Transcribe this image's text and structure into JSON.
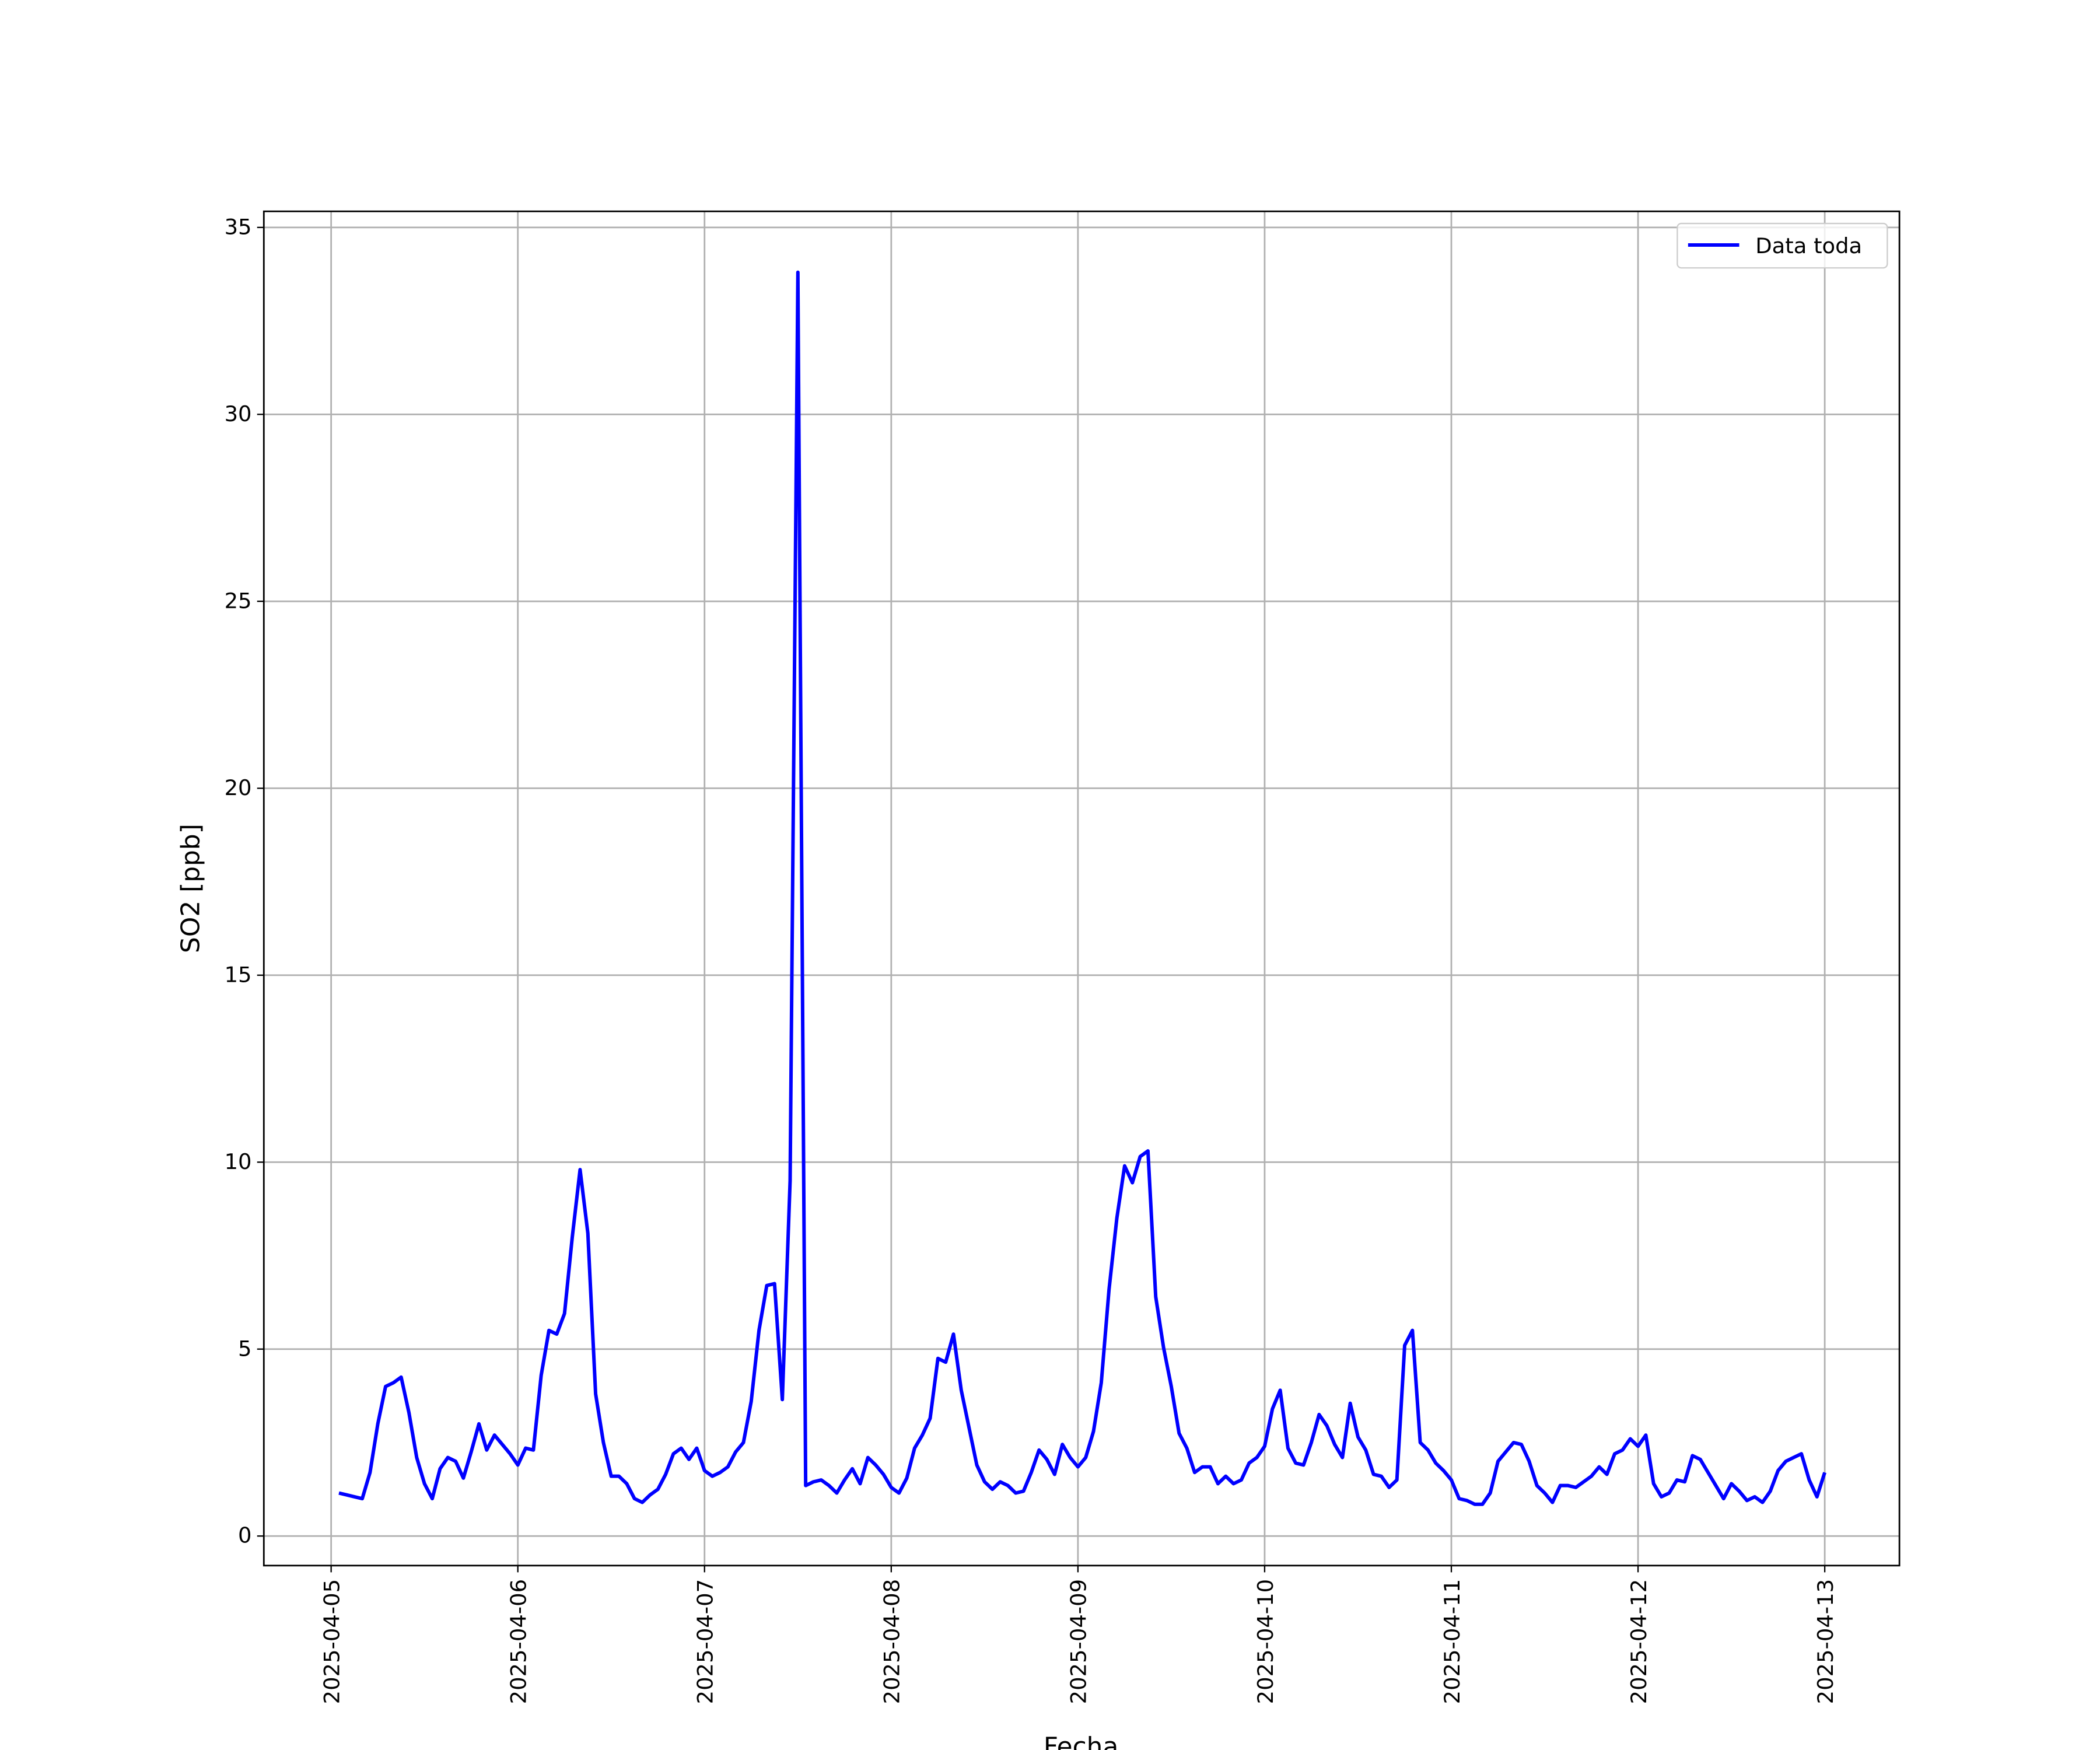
{
  "chart_data": {
    "type": "line",
    "xlabel": "Fecha",
    "ylabel": "SO2 [ppb]",
    "x": [
      1,
      2,
      3,
      4,
      5,
      6,
      7,
      8,
      9,
      10,
      11,
      12,
      13,
      14,
      15,
      16,
      17,
      18,
      19,
      20,
      21,
      22,
      23,
      24,
      25,
      26,
      27,
      28,
      29,
      30,
      31,
      32,
      33,
      34,
      35,
      36,
      37,
      38,
      39,
      40,
      41,
      42,
      43,
      44,
      45,
      46,
      47,
      48,
      49,
      50,
      51,
      52,
      53,
      54,
      55,
      56,
      57,
      58,
      59,
      60,
      61,
      62,
      63,
      64,
      65,
      66,
      67,
      68,
      69,
      70,
      71,
      72,
      73,
      74,
      75,
      76,
      77,
      78,
      79,
      80,
      81,
      82,
      83,
      84,
      85,
      86,
      87,
      88,
      89,
      90,
      91,
      92,
      93,
      94,
      95,
      96,
      97,
      98,
      99,
      100,
      101,
      102,
      103,
      104,
      105,
      106,
      107,
      108,
      109,
      110,
      111,
      112,
      113,
      114,
      115,
      116,
      117,
      118,
      119,
      120,
      121,
      122,
      123,
      124,
      125,
      126,
      127,
      128,
      129,
      130,
      131,
      132,
      133,
      134,
      135,
      136,
      137,
      138,
      139,
      140,
      141,
      142,
      143,
      144,
      145,
      146,
      147,
      148,
      149,
      150,
      151,
      152,
      153,
      154,
      155,
      156,
      157,
      158,
      159,
      160,
      161,
      162,
      163,
      164,
      165,
      166,
      167,
      168,
      169,
      170,
      171,
      172,
      173,
      174,
      175,
      176,
      177,
      178,
      179,
      180,
      181,
      182,
      183,
      184,
      185,
      186,
      187,
      188,
      189,
      190,
      191,
      192
    ],
    "series": [
      {
        "name": "Data toda",
        "color": "#0000ff",
        "values": [
          1.15,
          1.1,
          1.05,
          1.0,
          1.7,
          3.0,
          4.0,
          4.1,
          4.25,
          3.3,
          2.1,
          1.4,
          1.0,
          1.8,
          2.1,
          2.0,
          1.55,
          2.25,
          3.0,
          2.3,
          2.7,
          2.45,
          2.2,
          1.9,
          2.35,
          2.3,
          4.3,
          5.5,
          5.4,
          5.95,
          8.0,
          9.8,
          8.1,
          3.8,
          2.5,
          1.6,
          1.6,
          1.4,
          1.0,
          0.9,
          1.1,
          1.25,
          1.65,
          2.2,
          2.35,
          2.05,
          2.35,
          1.75,
          1.6,
          1.7,
          1.85,
          2.25,
          2.5,
          3.6,
          5.5,
          6.7,
          6.75,
          3.65,
          9.5,
          33.8,
          1.35,
          1.45,
          1.5,
          1.35,
          1.15,
          1.5,
          1.8,
          1.4,
          2.1,
          1.9,
          1.65,
          1.3,
          1.15,
          1.55,
          2.35,
          2.7,
          3.15,
          4.75,
          4.65,
          5.4,
          3.9,
          2.9,
          1.9,
          1.45,
          1.25,
          1.45,
          1.35,
          1.15,
          1.2,
          1.7,
          2.3,
          2.05,
          1.65,
          2.45,
          2.1,
          1.85,
          2.1,
          2.8,
          4.1,
          6.6,
          8.5,
          9.9,
          9.45,
          10.15,
          10.3,
          6.4,
          5.05,
          4.0,
          2.75,
          2.35,
          1.7,
          1.85,
          1.85,
          1.4,
          1.6,
          1.4,
          1.5,
          1.95,
          2.1,
          2.4,
          3.4,
          3.9,
          2.35,
          1.95,
          1.9,
          2.5,
          3.25,
          2.95,
          2.45,
          2.1,
          3.55,
          2.65,
          2.3,
          1.65,
          1.6,
          1.3,
          1.5,
          5.1,
          5.5,
          2.5,
          2.3,
          1.95,
          1.75,
          1.5,
          1.0,
          0.95,
          0.85,
          0.85,
          1.15,
          2.0,
          2.25,
          2.5,
          2.45,
          2.0,
          1.35,
          1.15,
          0.9,
          1.35,
          1.35,
          1.3,
          1.45,
          1.6,
          1.85,
          1.65,
          2.2,
          2.3,
          2.6,
          2.4,
          2.7,
          1.4,
          1.05,
          1.15,
          1.5,
          1.45,
          2.15,
          2.05,
          1.7,
          1.35,
          1.0,
          1.4,
          1.2,
          0.95,
          1.05,
          0.9,
          1.2,
          1.75,
          2.0,
          2.1,
          2.2,
          1.5,
          1.05,
          1.7
        ]
      }
    ],
    "xlim": [
      -8.65,
      201.6
    ],
    "xticks": [
      {
        "value": 0,
        "label": "2025-04-05"
      },
      {
        "value": 24,
        "label": "2025-04-06"
      },
      {
        "value": 48,
        "label": "2025-04-07"
      },
      {
        "value": 72,
        "label": "2025-04-08"
      },
      {
        "value": 96,
        "label": "2025-04-09"
      },
      {
        "value": 120,
        "label": "2025-04-10"
      },
      {
        "value": 144,
        "label": "2025-04-11"
      },
      {
        "value": 168,
        "label": "2025-04-12"
      },
      {
        "value": 192,
        "label": "2025-04-13"
      }
    ],
    "ylim": [
      -0.79,
      35.43
    ],
    "yticks": [
      0,
      5,
      10,
      15,
      20,
      25,
      30,
      35
    ],
    "grid": true,
    "legend": "upper right"
  }
}
